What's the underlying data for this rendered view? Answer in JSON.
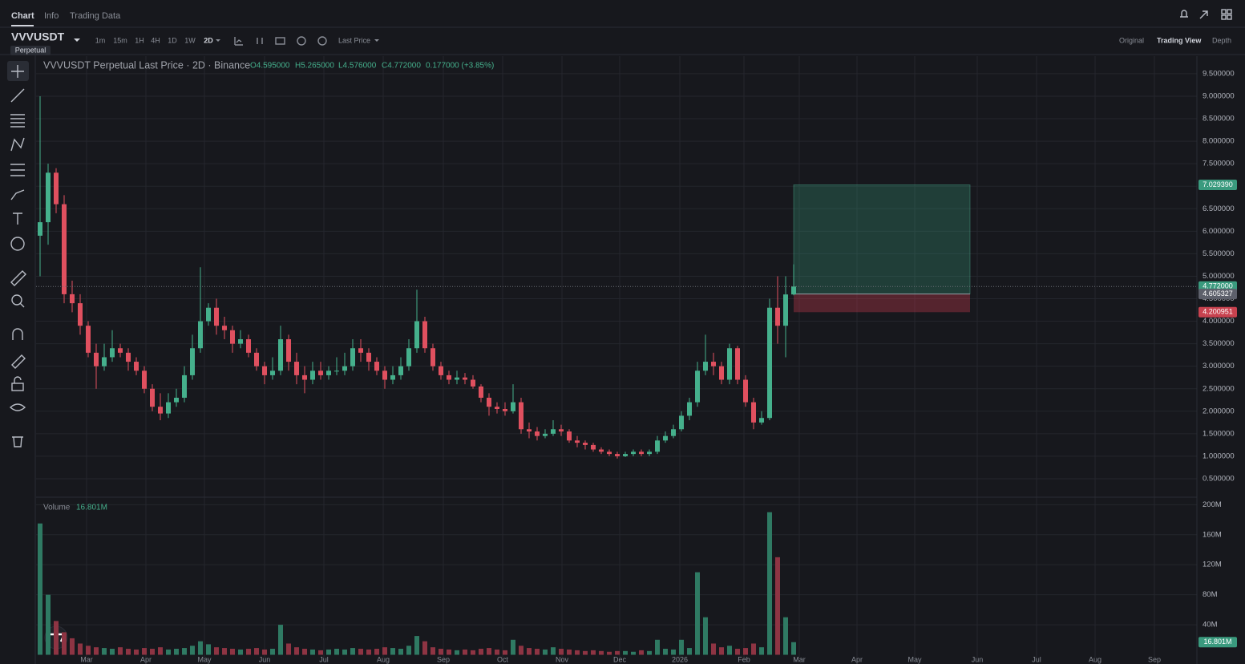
{
  "ui": {
    "tabs": [
      "Chart",
      "Info",
      "Trading Data"
    ],
    "symbol": "VVVUSDT",
    "contract": "Perpetual",
    "intervals": [
      "1m",
      "15m",
      "1H",
      "4H",
      "1D",
      "1W",
      "2D"
    ],
    "price_source": "Last Price",
    "views": [
      "Original",
      "Trading View",
      "Depth"
    ]
  },
  "chart_data": {
    "type": "candlestick",
    "title": "VVVUSDT Perpetual Last Price · 2D · Binance",
    "ohlc_labels": [
      "O4.595000",
      "H5.265000",
      "L4.576000",
      "C4.772000",
      "0.177000 (+3.85%)"
    ],
    "up_color": "#45b08c",
    "down_color": "#e0505f",
    "grid": true,
    "open": [
      5.9,
      6.2,
      7.3,
      6.6,
      4.6,
      4.4,
      3.9,
      3.3,
      3.0,
      3.2,
      3.4,
      3.3,
      3.1,
      2.9,
      2.5,
      2.1,
      1.95,
      2.2,
      2.3,
      2.8,
      3.4,
      4.0,
      4.3,
      3.9,
      3.8,
      3.5,
      3.6,
      3.3,
      3.0,
      2.8,
      2.9,
      3.6,
      3.1,
      2.8,
      2.7,
      2.9,
      2.8,
      2.9,
      2.9,
      3.0,
      3.4,
      3.3,
      3.1,
      2.9,
      2.7,
      2.8,
      3.0,
      3.4,
      4.0,
      3.4,
      3.0,
      2.8,
      2.7,
      2.75,
      2.7,
      2.55,
      2.3,
      2.1,
      2.05,
      2.0,
      2.2,
      1.6,
      1.55,
      1.45,
      1.5,
      1.6,
      1.55,
      1.35,
      1.3,
      1.25,
      1.15,
      1.1,
      1.05,
      1.0,
      1.05,
      1.1,
      1.05,
      1.1,
      1.35,
      1.45,
      1.6,
      1.9,
      2.2,
      2.9,
      3.1,
      3.0,
      2.7,
      3.4,
      2.7,
      2.2,
      1.75,
      1.85,
      4.3,
      3.9,
      4.595
    ],
    "high": [
      9.0,
      7.5,
      7.4,
      6.8,
      4.9,
      4.6,
      4.0,
      3.5,
      3.5,
      3.8,
      3.5,
      3.4,
      3.2,
      3.0,
      2.6,
      2.4,
      2.4,
      2.5,
      3.0,
      3.7,
      5.2,
      4.4,
      4.5,
      4.1,
      3.9,
      3.8,
      3.7,
      3.4,
      3.1,
      3.2,
      3.9,
      3.7,
      3.3,
      3.0,
      3.1,
      3.1,
      3.0,
      3.2,
      3.3,
      3.6,
      3.6,
      3.4,
      3.2,
      3.0,
      3.0,
      3.2,
      3.6,
      4.7,
      4.1,
      3.5,
      3.1,
      2.9,
      2.9,
      2.85,
      2.8,
      2.6,
      2.4,
      2.2,
      2.2,
      2.6,
      2.3,
      1.75,
      1.65,
      1.6,
      1.8,
      1.7,
      1.6,
      1.45,
      1.35,
      1.3,
      1.2,
      1.15,
      1.1,
      1.1,
      1.15,
      1.15,
      1.15,
      1.45,
      1.55,
      1.7,
      2.0,
      2.3,
      3.1,
      3.7,
      3.3,
      3.1,
      3.5,
      3.45,
      2.8,
      2.3,
      2.0,
      4.5,
      5.0,
      5.0,
      5.265
    ],
    "low": [
      5.0,
      5.7,
      6.4,
      4.4,
      4.2,
      3.7,
      3.2,
      2.5,
      2.9,
      3.1,
      3.2,
      2.9,
      2.8,
      2.4,
      2.0,
      1.8,
      1.85,
      2.1,
      2.2,
      2.7,
      3.3,
      3.9,
      3.7,
      3.6,
      3.3,
      3.4,
      3.2,
      2.9,
      2.6,
      2.7,
      2.8,
      2.9,
      2.6,
      2.4,
      2.6,
      2.7,
      2.7,
      2.8,
      2.8,
      2.9,
      3.1,
      2.9,
      2.8,
      2.5,
      2.6,
      2.7,
      2.9,
      3.3,
      3.3,
      2.9,
      2.7,
      2.6,
      2.6,
      2.6,
      2.5,
      2.2,
      1.9,
      1.95,
      1.9,
      1.95,
      1.5,
      1.4,
      1.35,
      1.4,
      1.45,
      1.45,
      1.3,
      1.2,
      1.15,
      1.1,
      1.05,
      1.0,
      0.95,
      0.98,
      1.0,
      1.0,
      1.0,
      1.05,
      1.3,
      1.4,
      1.55,
      1.8,
      2.1,
      2.8,
      2.8,
      2.6,
      2.6,
      2.6,
      2.1,
      1.6,
      1.7,
      1.8,
      3.5,
      3.2,
      4.576
    ],
    "close": [
      6.2,
      7.3,
      6.6,
      4.6,
      4.4,
      3.9,
      3.3,
      3.0,
      3.2,
      3.4,
      3.3,
      3.1,
      2.9,
      2.5,
      2.1,
      1.95,
      2.2,
      2.3,
      2.8,
      3.4,
      4.0,
      4.3,
      3.9,
      3.8,
      3.5,
      3.6,
      3.3,
      3.0,
      2.8,
      2.9,
      3.6,
      3.1,
      2.8,
      2.7,
      2.9,
      2.8,
      2.9,
      2.9,
      3.0,
      3.4,
      3.3,
      3.1,
      2.9,
      2.7,
      2.8,
      3.0,
      3.4,
      4.0,
      3.4,
      3.0,
      2.8,
      2.7,
      2.75,
      2.7,
      2.55,
      2.3,
      2.1,
      2.05,
      2.0,
      2.2,
      1.6,
      1.55,
      1.45,
      1.5,
      1.6,
      1.55,
      1.35,
      1.3,
      1.25,
      1.15,
      1.1,
      1.05,
      1.0,
      1.05,
      1.1,
      1.05,
      1.1,
      1.35,
      1.45,
      1.6,
      1.9,
      2.2,
      2.9,
      3.1,
      3.0,
      2.7,
      3.4,
      2.7,
      2.2,
      1.75,
      1.85,
      4.3,
      3.9,
      4.595,
      4.772
    ],
    "xlim": [
      -0.5,
      144.3
    ],
    "xticks": [
      {
        "value": 5.8,
        "label": "Mar"
      },
      {
        "value": 13.2,
        "label": "Apr"
      },
      {
        "value": 20.5,
        "label": "May"
      },
      {
        "value": 28,
        "label": "Jun"
      },
      {
        "value": 35.4,
        "label": "Jul"
      },
      {
        "value": 42.8,
        "label": "Aug"
      },
      {
        "value": 50.3,
        "label": "Sep"
      },
      {
        "value": 57.7,
        "label": "Oct"
      },
      {
        "value": 65.1,
        "label": "Nov"
      },
      {
        "value": 72.3,
        "label": "Dec"
      },
      {
        "value": 79.8,
        "label": "2026"
      },
      {
        "value": 87.8,
        "label": "Feb"
      },
      {
        "value": 94.7,
        "label": "Mar"
      },
      {
        "value": 101.9,
        "label": "Apr"
      },
      {
        "value": 109.1,
        "label": "May"
      },
      {
        "value": 116.9,
        "label": "Jun"
      },
      {
        "value": 124.3,
        "label": "Jul"
      },
      {
        "value": 131.6,
        "label": "Aug"
      },
      {
        "value": 139,
        "label": "Sep"
      }
    ],
    "ylim": [
      0.09,
      9.89
    ],
    "yticks": [
      {
        "value": 0.5,
        "label": "0.500000"
      },
      {
        "value": 1,
        "label": "1.000000"
      },
      {
        "value": 1.5,
        "label": "1.500000"
      },
      {
        "value": 2,
        "label": "2.000000"
      },
      {
        "value": 2.5,
        "label": "2.500000"
      },
      {
        "value": 3,
        "label": "3.000000"
      },
      {
        "value": 3.5,
        "label": "3.500000"
      },
      {
        "value": 4,
        "label": "4.000000"
      },
      {
        "value": 4.5,
        "label": "4.500000"
      },
      {
        "value": 5,
        "label": "5.000000"
      },
      {
        "value": 5.5,
        "label": "5.500000"
      },
      {
        "value": 6,
        "label": "6.000000"
      },
      {
        "value": 6.5,
        "label": "6.500000"
      },
      {
        "value": 7,
        "label": "7.000000"
      },
      {
        "value": 7.5,
        "label": "7.500000"
      },
      {
        "value": 8,
        "label": "8.000000"
      },
      {
        "value": 8.5,
        "label": "8.500000"
      },
      {
        "value": 9,
        "label": "9.000000"
      },
      {
        "value": 9.5,
        "label": "9.500000"
      }
    ],
    "last_price": {
      "value": 4.772,
      "label": "4.772000"
    },
    "position": {
      "start": 94,
      "end": 116,
      "target": {
        "value": 7.02939,
        "label": "7.029390"
      },
      "entry": {
        "value": 4.605327,
        "label": "4.605327"
      },
      "stop": {
        "value": 4.200951,
        "label": "4.200951"
      }
    },
    "volume": {
      "title": "Volume",
      "last_label": "16.801M",
      "up_color": "#2f7a63",
      "down_color": "#8e3443",
      "values": [
        175000000,
        80000000,
        45000000,
        30000000,
        22000000,
        15000000,
        12000000,
        10000000,
        9000000,
        8000000,
        10000000,
        8000000,
        7000000,
        9000000,
        8000000,
        10000000,
        7000000,
        8000000,
        9000000,
        12000000,
        18000000,
        14000000,
        10000000,
        9000000,
        8000000,
        7000000,
        8000000,
        9000000,
        7000000,
        8000000,
        40000000,
        15000000,
        10000000,
        8000000,
        7000000,
        6000000,
        7000000,
        8000000,
        7000000,
        9000000,
        8000000,
        7000000,
        8000000,
        10000000,
        9000000,
        8000000,
        12000000,
        25000000,
        18000000,
        10000000,
        8000000,
        7000000,
        6000000,
        7000000,
        6000000,
        8000000,
        9000000,
        7000000,
        6000000,
        20000000,
        12000000,
        9000000,
        8000000,
        7000000,
        10000000,
        8000000,
        7000000,
        6000000,
        5000000,
        6000000,
        5000000,
        4000000,
        5000000,
        5000000,
        4000000,
        6000000,
        5000000,
        20000000,
        8000000,
        7000000,
        20000000,
        9000000,
        110000000,
        50000000,
        15000000,
        10000000,
        12000000,
        8000000,
        9000000,
        15000000,
        10000000,
        190000000,
        130000000,
        50000000,
        16801000
      ],
      "ylim": [
        0,
        210000000
      ],
      "yticks": [
        {
          "value": 40000000,
          "label": "40M"
        },
        {
          "value": 80000000,
          "label": "80M"
        },
        {
          "value": 120000000,
          "label": "120M"
        },
        {
          "value": 160000000,
          "label": "160M"
        },
        {
          "value": 200000000,
          "label": "200M"
        }
      ]
    }
  }
}
